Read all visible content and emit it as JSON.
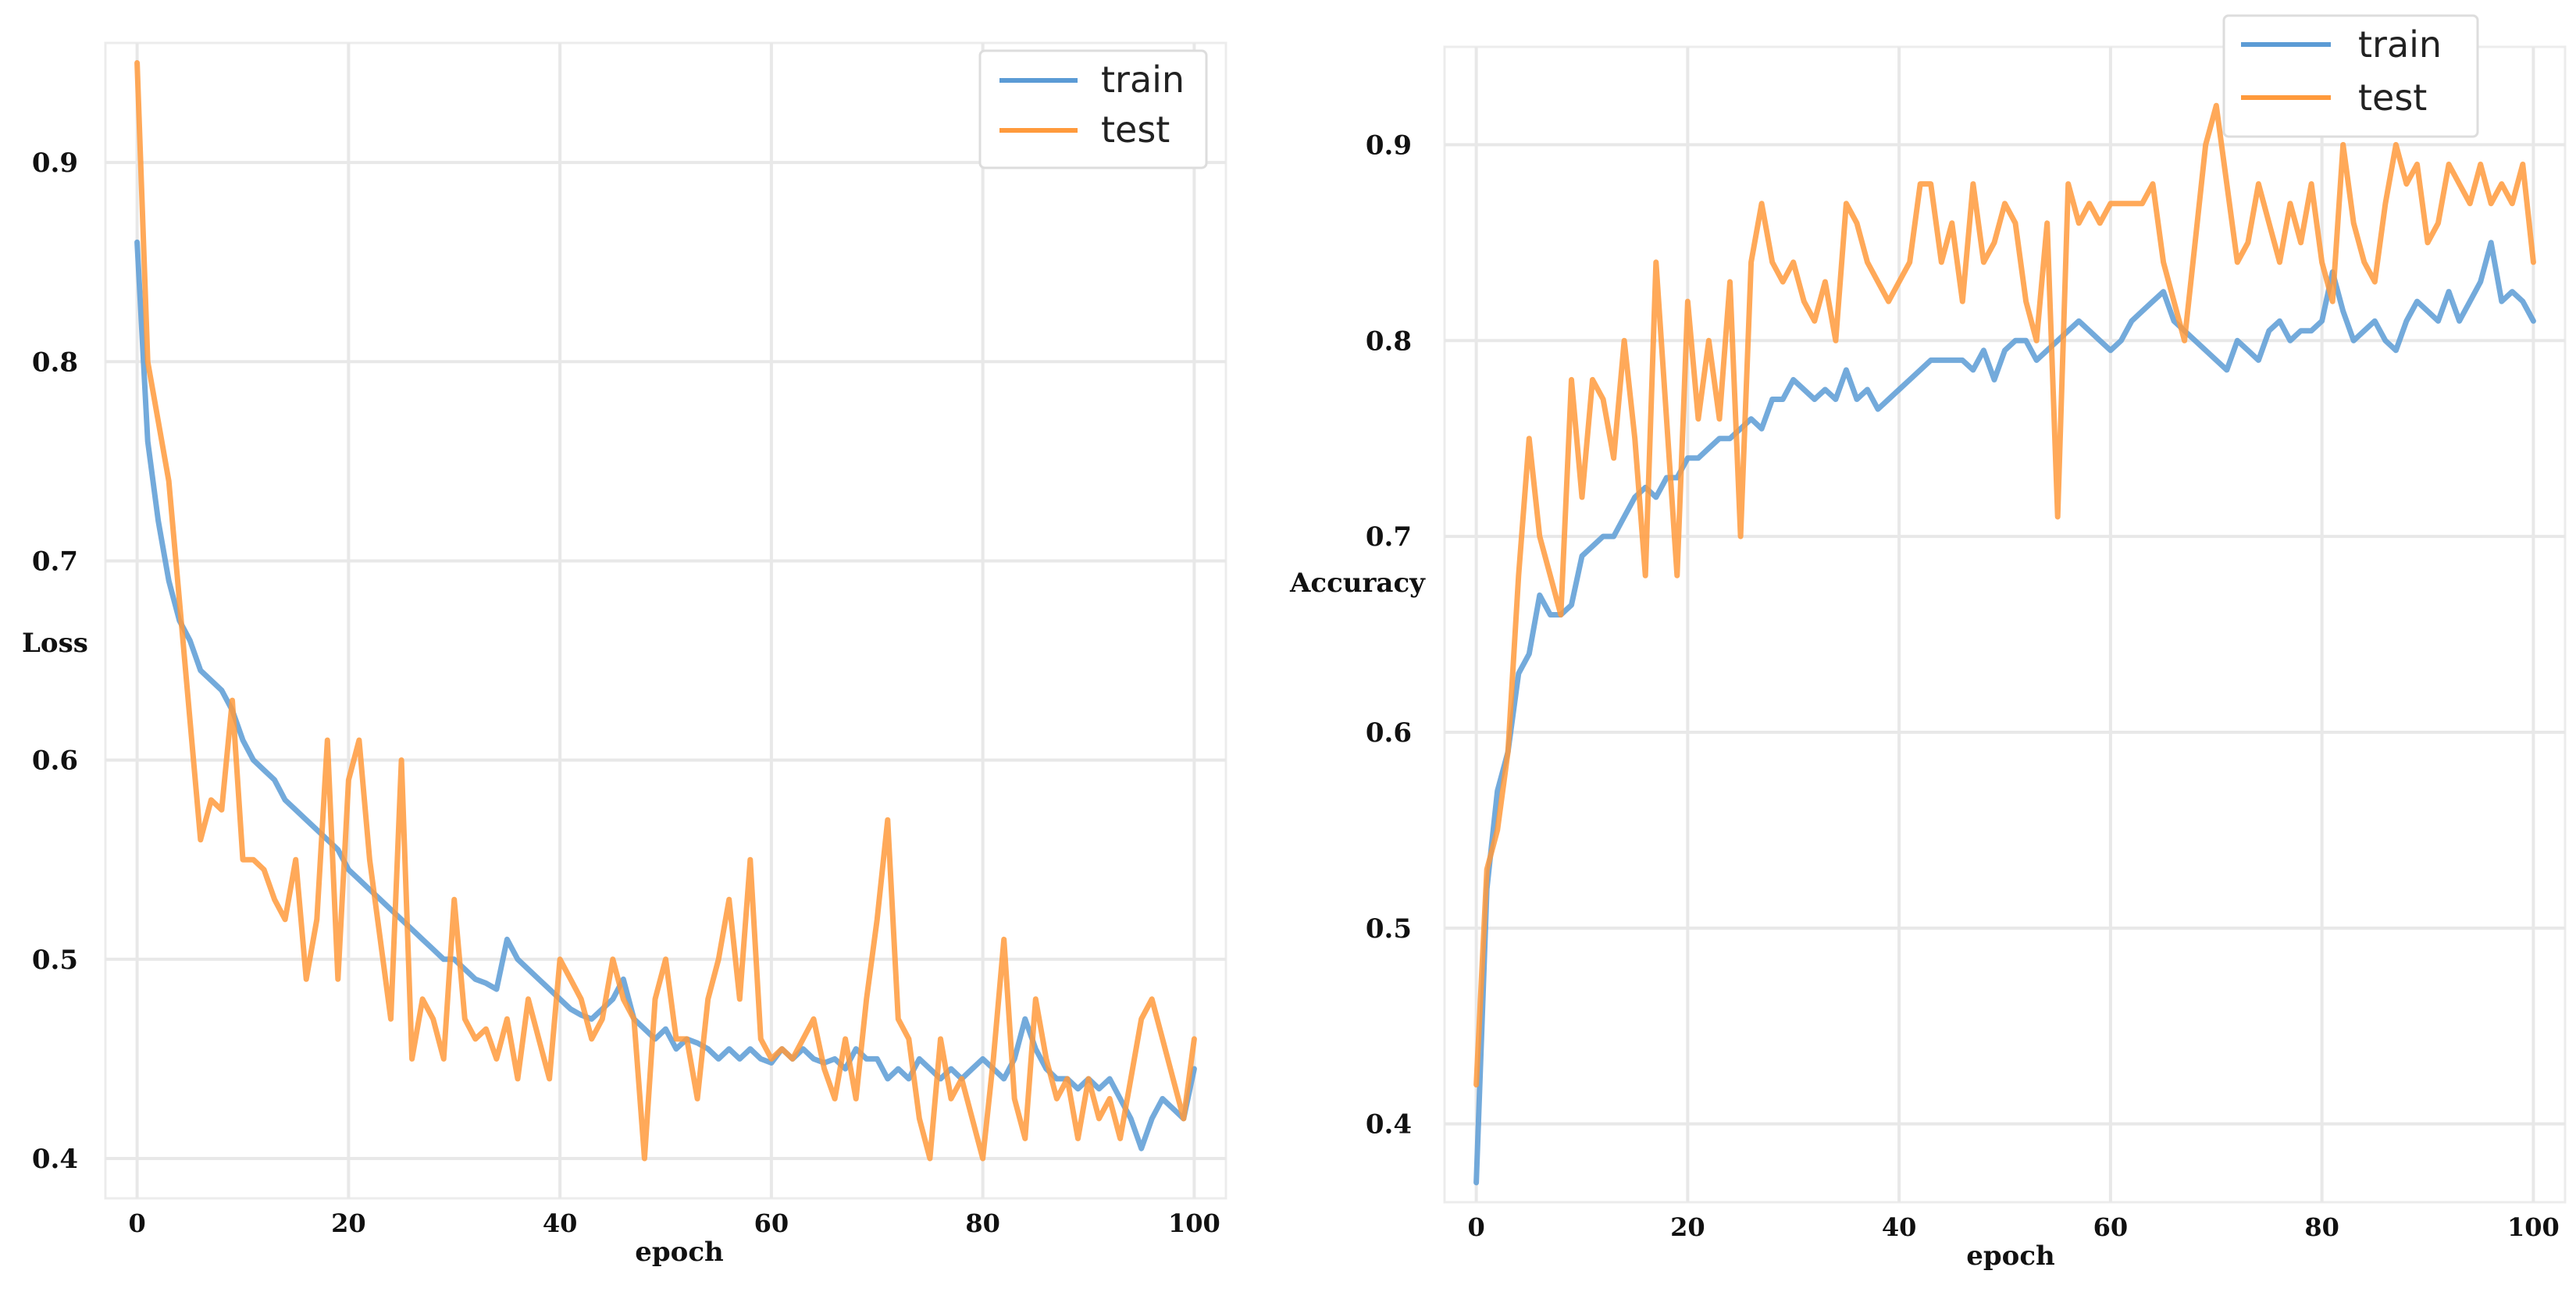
{
  "chart_data": [
    {
      "type": "line",
      "title": "",
      "xlabel": "epoch",
      "ylabel": "Loss",
      "xlim": [
        -3,
        103
      ],
      "ylim": [
        0.38,
        0.96
      ],
      "xticks": [
        0,
        20,
        40,
        60,
        80,
        100
      ],
      "xtick_labels": [
        "0",
        "20",
        "40",
        "60",
        "80",
        "100"
      ],
      "yticks": [
        0.4,
        0.5,
        0.6,
        0.7,
        0.8,
        0.9
      ],
      "ytick_labels": [
        "0.4",
        "0.5",
        "0.6",
        "0.7",
        "0.8",
        "0.9"
      ],
      "grid": true,
      "legend_position": "top-right",
      "series": [
        {
          "name": "train",
          "color": "#5b9bd5",
          "values": [
            0.86,
            0.76,
            0.72,
            0.69,
            0.67,
            0.66,
            0.645,
            0.64,
            0.635,
            0.625,
            0.61,
            0.6,
            0.595,
            0.59,
            0.58,
            0.575,
            0.57,
            0.565,
            0.56,
            0.555,
            0.545,
            0.54,
            0.535,
            0.53,
            0.525,
            0.52,
            0.515,
            0.51,
            0.505,
            0.5,
            0.5,
            0.495,
            0.49,
            0.488,
            0.485,
            0.51,
            0.5,
            0.495,
            0.49,
            0.485,
            0.48,
            0.475,
            0.472,
            0.47,
            0.475,
            0.48,
            0.49,
            0.47,
            0.465,
            0.46,
            0.465,
            0.455,
            0.46,
            0.458,
            0.455,
            0.45,
            0.455,
            0.45,
            0.455,
            0.45,
            0.448,
            0.455,
            0.45,
            0.455,
            0.45,
            0.448,
            0.45,
            0.445,
            0.455,
            0.45,
            0.45,
            0.44,
            0.445,
            0.44,
            0.45,
            0.445,
            0.44,
            0.445,
            0.44,
            0.445,
            0.45,
            0.445,
            0.44,
            0.45,
            0.47,
            0.455,
            0.445,
            0.44,
            0.44,
            0.435,
            0.44,
            0.435,
            0.44,
            0.43,
            0.42,
            0.405,
            0.42,
            0.43,
            0.425,
            0.42,
            0.445
          ]
        },
        {
          "name": "test",
          "color": "#ff9a3c",
          "values": [
            0.95,
            0.8,
            0.77,
            0.74,
            0.68,
            0.62,
            0.56,
            0.58,
            0.575,
            0.63,
            0.55,
            0.55,
            0.545,
            0.53,
            0.52,
            0.55,
            0.49,
            0.52,
            0.61,
            0.49,
            0.59,
            0.61,
            0.55,
            0.51,
            0.47,
            0.6,
            0.45,
            0.48,
            0.47,
            0.45,
            0.53,
            0.47,
            0.46,
            0.465,
            0.45,
            0.47,
            0.44,
            0.48,
            0.46,
            0.44,
            0.5,
            0.49,
            0.48,
            0.46,
            0.47,
            0.5,
            0.48,
            0.47,
            0.4,
            0.48,
            0.5,
            0.46,
            0.46,
            0.43,
            0.48,
            0.5,
            0.53,
            0.48,
            0.55,
            0.46,
            0.45,
            0.455,
            0.45,
            0.46,
            0.47,
            0.445,
            0.43,
            0.46,
            0.43,
            0.48,
            0.52,
            0.57,
            0.47,
            0.46,
            0.42,
            0.4,
            0.46,
            0.43,
            0.44,
            0.42,
            0.4,
            0.45,
            0.51,
            0.43,
            0.41,
            0.48,
            0.45,
            0.43,
            0.44,
            0.41,
            0.44,
            0.42,
            0.43,
            0.41,
            0.44,
            0.47,
            0.48,
            0.46,
            0.44,
            0.42,
            0.46
          ]
        }
      ]
    },
    {
      "type": "line",
      "title": "",
      "xlabel": "epoch",
      "ylabel": "Accuracy",
      "xlim": [
        -3,
        103
      ],
      "ylim": [
        0.36,
        0.95
      ],
      "xticks": [
        0,
        20,
        40,
        60,
        80,
        100
      ],
      "xtick_labels": [
        "0",
        "20",
        "40",
        "60",
        "80",
        "100"
      ],
      "yticks": [
        0.4,
        0.5,
        0.6,
        0.7,
        0.8,
        0.9
      ],
      "ytick_labels": [
        "0.4",
        "0.5",
        "0.6",
        "0.7",
        "0.8",
        "0.9"
      ],
      "grid": true,
      "legend_position": "top-right",
      "series": [
        {
          "name": "train",
          "color": "#5b9bd5",
          "values": [
            0.37,
            0.52,
            0.57,
            0.59,
            0.63,
            0.64,
            0.67,
            0.66,
            0.66,
            0.665,
            0.69,
            0.695,
            0.7,
            0.7,
            0.71,
            0.72,
            0.725,
            0.72,
            0.73,
            0.73,
            0.74,
            0.74,
            0.745,
            0.75,
            0.75,
            0.755,
            0.76,
            0.755,
            0.77,
            0.77,
            0.78,
            0.775,
            0.77,
            0.775,
            0.77,
            0.785,
            0.77,
            0.775,
            0.765,
            0.77,
            0.775,
            0.78,
            0.785,
            0.79,
            0.79,
            0.79,
            0.79,
            0.785,
            0.795,
            0.78,
            0.795,
            0.8,
            0.8,
            0.79,
            0.795,
            0.8,
            0.805,
            0.81,
            0.805,
            0.8,
            0.795,
            0.8,
            0.81,
            0.815,
            0.82,
            0.825,
            0.81,
            0.805,
            0.8,
            0.795,
            0.79,
            0.785,
            0.8,
            0.795,
            0.79,
            0.805,
            0.81,
            0.8,
            0.805,
            0.805,
            0.81,
            0.835,
            0.815,
            0.8,
            0.805,
            0.81,
            0.8,
            0.795,
            0.81,
            0.82,
            0.815,
            0.81,
            0.825,
            0.81,
            0.82,
            0.83,
            0.85,
            0.82,
            0.825,
            0.82,
            0.81
          ]
        },
        {
          "name": "test",
          "color": "#ff9a3c",
          "values": [
            0.42,
            0.53,
            0.55,
            0.59,
            0.68,
            0.75,
            0.7,
            0.68,
            0.66,
            0.78,
            0.72,
            0.78,
            0.77,
            0.74,
            0.8,
            0.75,
            0.68,
            0.84,
            0.76,
            0.68,
            0.82,
            0.76,
            0.8,
            0.76,
            0.83,
            0.7,
            0.84,
            0.87,
            0.84,
            0.83,
            0.84,
            0.82,
            0.81,
            0.83,
            0.8,
            0.87,
            0.86,
            0.84,
            0.83,
            0.82,
            0.83,
            0.84,
            0.88,
            0.88,
            0.84,
            0.86,
            0.82,
            0.88,
            0.84,
            0.85,
            0.87,
            0.86,
            0.82,
            0.8,
            0.86,
            0.71,
            0.88,
            0.86,
            0.87,
            0.86,
            0.87,
            0.87,
            0.87,
            0.87,
            0.88,
            0.84,
            0.82,
            0.8,
            0.85,
            0.9,
            0.92,
            0.88,
            0.84,
            0.85,
            0.88,
            0.86,
            0.84,
            0.87,
            0.85,
            0.88,
            0.84,
            0.82,
            0.9,
            0.86,
            0.84,
            0.83,
            0.87,
            0.9,
            0.88,
            0.89,
            0.85,
            0.86,
            0.89,
            0.88,
            0.87,
            0.89,
            0.87,
            0.88,
            0.87,
            0.89,
            0.84
          ]
        }
      ]
    }
  ]
}
